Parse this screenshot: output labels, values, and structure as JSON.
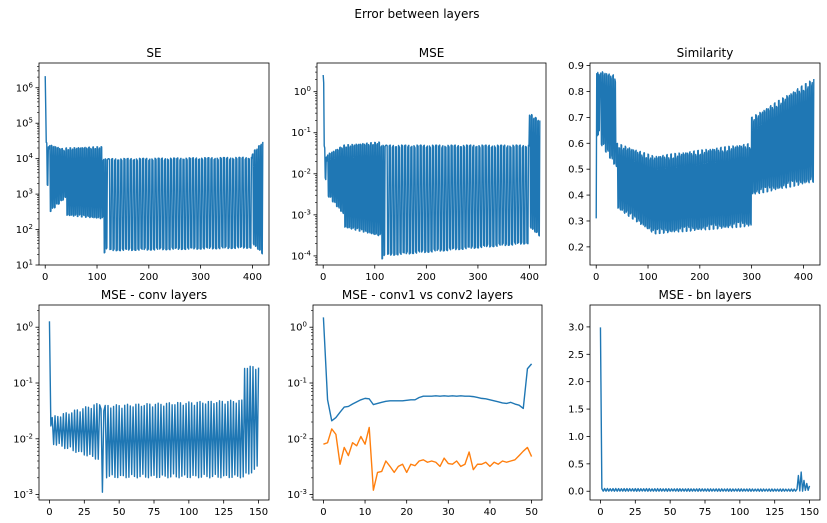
{
  "figure": {
    "suptitle": "Error between layers",
    "colors": {
      "series1": "#1f77b4",
      "series2": "#ff7f0e",
      "axis": "#000000",
      "background": "#ffffff"
    }
  },
  "chart_data": [
    {
      "type": "line",
      "title": "SE",
      "xlabel": "",
      "ylabel": "",
      "yscale": "log",
      "xlim": [
        -12,
        432
      ],
      "ylim": [
        10,
        5000000
      ],
      "xticks": [
        0,
        100,
        200,
        300,
        400
      ],
      "yticks": [
        10,
        100,
        1000,
        10000,
        100000,
        1000000
      ],
      "ytick_labels": [
        "10^1",
        "10^2",
        "10^3",
        "10^4",
        "10^5",
        "10^6"
      ],
      "grid": false,
      "series": [
        {
          "color": "#1f77b4",
          "pattern": "oscillating",
          "length": 421,
          "segments": [
            {
              "x": [
                0,
                1
              ],
              "hi": [
                2500000,
                2500000
              ],
              "lo": [
                250000,
                250000
              ],
              "period": 1
            },
            {
              "x": [
                2,
                8
              ],
              "hi": [
                30000,
                20000
              ],
              "lo": [
                2000,
                1500
              ],
              "period": 3
            },
            {
              "x": [
                8,
                40
              ],
              "hi": [
                25000,
                18000
              ],
              "lo": [
                300,
                800
              ],
              "period": 3
            },
            {
              "x": [
                40,
                112
              ],
              "hi": [
                20000,
                22000
              ],
              "lo": [
                250,
                200
              ],
              "period": 3
            },
            {
              "x": [
                112,
                122
              ],
              "hi": [
                10000,
                10000
              ],
              "lo": [
                20,
                30
              ],
              "period": 3
            },
            {
              "x": [
                122,
                400
              ],
              "hi": [
                10000,
                11000
              ],
              "lo": [
                25,
                30
              ],
              "period": 5
            },
            {
              "x": [
                400,
                420
              ],
              "hi": [
                15000,
                30000
              ],
              "lo": [
                40,
                20
              ],
              "period": 3
            }
          ]
        }
      ]
    },
    {
      "type": "line",
      "title": "MSE",
      "xlabel": "",
      "ylabel": "",
      "yscale": "log",
      "xlim": [
        -12,
        432
      ],
      "ylim": [
        6e-05,
        5
      ],
      "xticks": [
        0,
        100,
        200,
        300,
        400
      ],
      "yticks": [
        0.0001,
        0.001,
        0.01,
        0.1,
        1
      ],
      "ytick_labels": [
        "10^-4",
        "10^-3",
        "10^-2",
        "10^-1",
        "10^0"
      ],
      "grid": false,
      "series": [
        {
          "color": "#1f77b4",
          "pattern": "oscillating",
          "length": 421,
          "segments": [
            {
              "x": [
                0,
                1
              ],
              "hi": [
                3,
                3
              ],
              "lo": [
                1.5,
                1.5
              ],
              "period": 1
            },
            {
              "x": [
                2,
                8
              ],
              "hi": [
                0.05,
                0.02
              ],
              "lo": [
                0.01,
                0.005
              ],
              "period": 3
            },
            {
              "x": [
                8,
                40
              ],
              "hi": [
                0.03,
                0.05
              ],
              "lo": [
                0.003,
                0.001
              ],
              "period": 3
            },
            {
              "x": [
                40,
                112
              ],
              "hi": [
                0.05,
                0.06
              ],
              "lo": [
                0.0005,
                0.0003
              ],
              "period": 3
            },
            {
              "x": [
                112,
                122
              ],
              "hi": [
                0.05,
                0.05
              ],
              "lo": [
                8e-05,
                0.0001
              ],
              "period": 3
            },
            {
              "x": [
                122,
                400
              ],
              "hi": [
                0.05,
                0.05
              ],
              "lo": [
                0.0001,
                0.0002
              ],
              "period": 5
            },
            {
              "x": [
                400,
                420
              ],
              "hi": [
                0.3,
                0.2
              ],
              "lo": [
                0.0005,
                0.0003
              ],
              "period": 3
            }
          ]
        }
      ]
    },
    {
      "type": "line",
      "title": "Similarity",
      "xlabel": "",
      "ylabel": "",
      "yscale": "linear",
      "xlim": [
        -12,
        432
      ],
      "ylim": [
        0.13,
        0.91
      ],
      "xticks": [
        0,
        100,
        200,
        300,
        400
      ],
      "yticks": [
        0.2,
        0.3,
        0.4,
        0.5,
        0.6,
        0.7,
        0.8,
        0.9
      ],
      "ytick_labels": [
        "0.2",
        "0.3",
        "0.4",
        "0.5",
        "0.6",
        "0.7",
        "0.8",
        "0.9"
      ],
      "grid": false,
      "series": [
        {
          "color": "#1f77b4",
          "pattern": "oscillating",
          "length": 421,
          "segments": [
            {
              "x": [
                0,
                1
              ],
              "hi": [
                0.31,
                0.31
              ],
              "lo": [
                0.31,
                0.31
              ],
              "period": 1
            },
            {
              "x": [
                1,
                8
              ],
              "hi": [
                0.88,
                0.86
              ],
              "lo": [
                0.62,
                0.65
              ],
              "period": 2
            },
            {
              "x": [
                8,
                40
              ],
              "hi": [
                0.88,
                0.86
              ],
              "lo": [
                0.6,
                0.5
              ],
              "period": 3
            },
            {
              "x": [
                40,
                112
              ],
              "hi": [
                0.6,
                0.55
              ],
              "lo": [
                0.35,
                0.25
              ],
              "period": 3
            },
            {
              "x": [
                112,
                300
              ],
              "hi": [
                0.55,
                0.6
              ],
              "lo": [
                0.25,
                0.28
              ],
              "period": 4
            },
            {
              "x": [
                300,
                420
              ],
              "hi": [
                0.7,
                0.85
              ],
              "lo": [
                0.4,
                0.45
              ],
              "period": 3
            }
          ]
        }
      ]
    },
    {
      "type": "line",
      "title": "MSE - conv layers",
      "xlabel": "",
      "ylabel": "",
      "yscale": "log",
      "xlim": [
        -7.5,
        157.5
      ],
      "ylim": [
        0.0008,
        2.5
      ],
      "xticks": [
        0,
        25,
        50,
        75,
        100,
        125,
        150
      ],
      "yticks": [
        0.001,
        0.01,
        0.1,
        1
      ],
      "ytick_labels": [
        "10^-3",
        "10^-2",
        "10^-1",
        "10^0"
      ],
      "grid": false,
      "series": [
        {
          "color": "#1f77b4",
          "pattern": "oscillating",
          "length": 151,
          "segments": [
            {
              "x": [
                0,
                2
              ],
              "hi": [
                1.5,
                0.03
              ],
              "lo": [
                0.03,
                0.008
              ],
              "period": 1
            },
            {
              "x": [
                2,
                37
              ],
              "hi": [
                0.025,
                0.045
              ],
              "lo": [
                0.008,
                0.004
              ],
              "period": 2
            },
            {
              "x": [
                37,
                40
              ],
              "hi": [
                0.04,
                0.03
              ],
              "lo": [
                0.001,
                0.001
              ],
              "period": 2
            },
            {
              "x": [
                40,
                140
              ],
              "hi": [
                0.04,
                0.05
              ],
              "lo": [
                0.002,
                0.002
              ],
              "period": 2
            },
            {
              "x": [
                140,
                150
              ],
              "hi": [
                0.2,
                0.2
              ],
              "lo": [
                0.002,
                0.003
              ],
              "period": 2
            }
          ]
        }
      ]
    },
    {
      "type": "line",
      "title": "MSE - conv1 vs conv2 layers",
      "xlabel": "",
      "ylabel": "",
      "yscale": "log",
      "xlim": [
        -2.5,
        52.5
      ],
      "ylim": [
        0.0008,
        2.5
      ],
      "xticks": [
        0,
        10,
        20,
        30,
        40,
        50
      ],
      "yticks": [
        0.001,
        0.01,
        0.1,
        1
      ],
      "ytick_labels": [
        "10^-3",
        "10^-2",
        "10^-1",
        "10^0"
      ],
      "grid": false,
      "series": [
        {
          "color": "#1f77b4",
          "x": [
            0,
            1,
            2,
            3,
            4,
            5,
            6,
            7,
            8,
            9,
            10,
            11,
            12,
            13,
            14,
            15,
            16,
            17,
            18,
            19,
            20,
            21,
            22,
            23,
            24,
            25,
            26,
            27,
            28,
            29,
            30,
            31,
            32,
            33,
            34,
            35,
            36,
            37,
            38,
            39,
            40,
            41,
            42,
            43,
            44,
            45,
            46,
            47,
            48,
            49,
            50
          ],
          "y": [
            1.5,
            0.05,
            0.021,
            0.024,
            0.03,
            0.037,
            0.038,
            0.042,
            0.046,
            0.05,
            0.053,
            0.052,
            0.041,
            0.043,
            0.045,
            0.047,
            0.048,
            0.048,
            0.048,
            0.048,
            0.049,
            0.05,
            0.05,
            0.055,
            0.058,
            0.058,
            0.058,
            0.059,
            0.058,
            0.059,
            0.058,
            0.059,
            0.058,
            0.059,
            0.058,
            0.058,
            0.057,
            0.055,
            0.053,
            0.052,
            0.05,
            0.048,
            0.046,
            0.044,
            0.043,
            0.045,
            0.042,
            0.04,
            0.035,
            0.18,
            0.22
          ]
        },
        {
          "color": "#ff7f0e",
          "x": [
            0,
            1,
            2,
            3,
            4,
            5,
            6,
            7,
            8,
            9,
            10,
            11,
            12,
            13,
            14,
            15,
            16,
            17,
            18,
            19,
            20,
            21,
            22,
            23,
            24,
            25,
            26,
            27,
            28,
            29,
            30,
            31,
            32,
            33,
            34,
            35,
            36,
            37,
            38,
            39,
            40,
            41,
            42,
            43,
            44,
            45,
            46,
            47,
            48,
            49,
            50
          ],
          "y": [
            0.008,
            0.0085,
            0.015,
            0.012,
            0.0035,
            0.007,
            0.005,
            0.0085,
            0.0075,
            0.011,
            0.008,
            0.016,
            0.0012,
            0.0025,
            0.0026,
            0.004,
            0.0032,
            0.0025,
            0.0032,
            0.0035,
            0.0025,
            0.0035,
            0.0033,
            0.004,
            0.0042,
            0.0038,
            0.004,
            0.0038,
            0.0032,
            0.0045,
            0.0036,
            0.0035,
            0.004,
            0.0032,
            0.0035,
            0.0058,
            0.0028,
            0.0035,
            0.0035,
            0.0038,
            0.0032,
            0.0038,
            0.0035,
            0.004,
            0.0038,
            0.004,
            0.0042,
            0.005,
            0.006,
            0.007,
            0.0048
          ]
        }
      ]
    },
    {
      "type": "line",
      "title": "MSE - bn layers",
      "xlabel": "",
      "ylabel": "",
      "yscale": "linear",
      "xlim": [
        -7.5,
        157.5
      ],
      "ylim": [
        -0.16,
        3.4
      ],
      "xticks": [
        0,
        25,
        50,
        75,
        100,
        125,
        150
      ],
      "yticks": [
        0.0,
        0.5,
        1.0,
        1.5,
        2.0,
        2.5,
        3.0
      ],
      "ytick_labels": [
        "0.0",
        "0.5",
        "1.0",
        "1.5",
        "2.0",
        "2.5",
        "3.0"
      ],
      "grid": false,
      "series": [
        {
          "color": "#1f77b4",
          "pattern": "oscillating",
          "length": 151,
          "segments": [
            {
              "x": [
                0,
                1
              ],
              "hi": [
                3.23,
                3.23
              ],
              "lo": [
                0.05,
                0.05
              ],
              "period": 1
            },
            {
              "x": [
                1,
                142
              ],
              "hi": [
                0.05,
                0.04
              ],
              "lo": [
                0.0,
                0.0
              ],
              "period": 2
            },
            {
              "x": [
                142,
                146
              ],
              "hi": [
                0.3,
                0.4
              ],
              "lo": [
                0.0,
                0.0
              ],
              "period": 2
            },
            {
              "x": [
                146,
                150
              ],
              "hi": [
                0.2,
                0.1
              ],
              "lo": [
                0.01,
                0.01
              ],
              "period": 2
            }
          ]
        }
      ]
    }
  ]
}
